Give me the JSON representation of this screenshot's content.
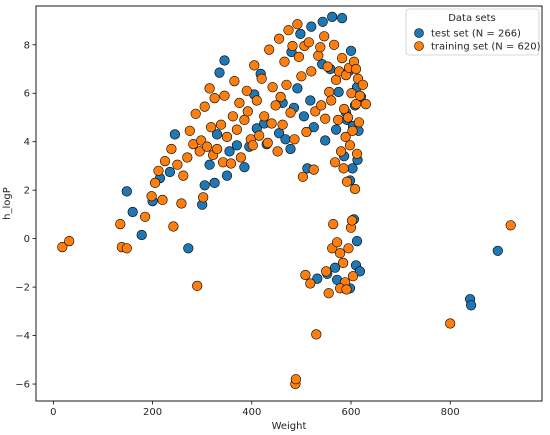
{
  "chart_data": {
    "type": "scatter",
    "title": "",
    "xlabel": "Weight",
    "ylabel": "h_logP",
    "xlim": [
      -35,
      985
    ],
    "ylim": [
      -6.7,
      9.6
    ],
    "x_ticks": [
      0,
      200,
      400,
      600,
      800
    ],
    "y_ticks": [
      -6,
      -4,
      -2,
      0,
      2,
      4,
      6,
      8
    ],
    "grid": false,
    "legend": {
      "title": "Data sets",
      "location": "upper right"
    },
    "series": [
      {
        "name": "test set (N = 266)",
        "color": "#1f77b4",
        "points": [
          [
            148,
            1.95
          ],
          [
            160,
            1.1
          ],
          [
            178,
            0.15
          ],
          [
            200,
            1.55
          ],
          [
            215,
            2.5
          ],
          [
            235,
            2.75
          ],
          [
            245,
            4.3
          ],
          [
            272,
            -0.4
          ],
          [
            300,
            1.4
          ],
          [
            305,
            2.2
          ],
          [
            315,
            3.05
          ],
          [
            325,
            2.3
          ],
          [
            330,
            4.3
          ],
          [
            335,
            6.85
          ],
          [
            345,
            7.35
          ],
          [
            350,
            2.6
          ],
          [
            355,
            3.6
          ],
          [
            370,
            3.85
          ],
          [
            385,
            2.95
          ],
          [
            395,
            3.8
          ],
          [
            405,
            5.95
          ],
          [
            410,
            4.55
          ],
          [
            418,
            6.8
          ],
          [
            425,
            4.75
          ],
          [
            430,
            3.9
          ],
          [
            455,
            4.35
          ],
          [
            462,
            5.6
          ],
          [
            468,
            4.1
          ],
          [
            478,
            3.7
          ],
          [
            480,
            7.7
          ],
          [
            485,
            5.4
          ],
          [
            492,
            6.2
          ],
          [
            498,
            8.45
          ],
          [
            505,
            5.05
          ],
          [
            512,
            2.9
          ],
          [
            518,
            5.7
          ],
          [
            520,
            8.75
          ],
          [
            525,
            4.6
          ],
          [
            532,
            -1.65
          ],
          [
            542,
            7.2
          ],
          [
            543,
            8.95
          ],
          [
            548,
            4.05
          ],
          [
            552,
            -1.45
          ],
          [
            558,
            7.0
          ],
          [
            562,
            9.15
          ],
          [
            568,
            -1.2
          ],
          [
            570,
            4.5
          ],
          [
            575,
            6.05
          ],
          [
            582,
            9.1
          ],
          [
            586,
            3.4
          ],
          [
            590,
            5.2
          ],
          [
            592,
            4.9
          ],
          [
            595,
            6.9
          ],
          [
            598,
            2.4
          ],
          [
            600,
            7.75
          ],
          [
            603,
            2.9
          ],
          [
            604,
            4.65
          ],
          [
            606,
            0.8
          ],
          [
            608,
            5.5
          ],
          [
            610,
            -1.1
          ],
          [
            612,
            6.25
          ],
          [
            613,
            3.25
          ],
          [
            615,
            4.45
          ],
          [
            618,
            -1.35
          ],
          [
            620,
            5.85
          ],
          [
            598,
            -2.05
          ],
          [
            572,
            -1.7
          ],
          [
            612,
            -0.1
          ],
          [
            896,
            -0.5
          ],
          [
            840,
            -2.5
          ],
          [
            842,
            -2.75
          ]
        ]
      },
      {
        "name": "training set (N = 620)",
        "color": "#ff7f0e",
        "points": [
          [
            18,
            -0.35
          ],
          [
            32,
            -0.1
          ],
          [
            135,
            0.6
          ],
          [
            138,
            -0.35
          ],
          [
            148,
            -0.4
          ],
          [
            185,
            0.9
          ],
          [
            198,
            1.75
          ],
          [
            205,
            2.3
          ],
          [
            212,
            2.8
          ],
          [
            220,
            1.6
          ],
          [
            225,
            3.2
          ],
          [
            238,
            3.7
          ],
          [
            242,
            0.5
          ],
          [
            250,
            3.05
          ],
          [
            258,
            1.45
          ],
          [
            262,
            2.6
          ],
          [
            270,
            3.35
          ],
          [
            275,
            4.45
          ],
          [
            282,
            3.9
          ],
          [
            287,
            5.15
          ],
          [
            290,
            -1.95
          ],
          [
            295,
            3.6
          ],
          [
            298,
            4.05
          ],
          [
            302,
            1.7
          ],
          [
            305,
            5.45
          ],
          [
            310,
            3.8
          ],
          [
            315,
            6.2
          ],
          [
            318,
            4.6
          ],
          [
            322,
            3.45
          ],
          [
            325,
            5.8
          ],
          [
            330,
            3.7
          ],
          [
            338,
            4.7
          ],
          [
            342,
            3.15
          ],
          [
            345,
            5.9
          ],
          [
            350,
            4.2
          ],
          [
            358,
            3.1
          ],
          [
            362,
            5.05
          ],
          [
            365,
            6.5
          ],
          [
            370,
            4.5
          ],
          [
            375,
            5.6
          ],
          [
            378,
            3.35
          ],
          [
            385,
            4.9
          ],
          [
            390,
            6.1
          ],
          [
            392,
            5.25
          ],
          [
            398,
            4.1
          ],
          [
            402,
            3.85
          ],
          [
            405,
            7.15
          ],
          [
            410,
            5.7
          ],
          [
            415,
            4.25
          ],
          [
            420,
            6.6
          ],
          [
            425,
            5.05
          ],
          [
            432,
            3.95
          ],
          [
            435,
            7.8
          ],
          [
            440,
            4.75
          ],
          [
            442,
            6.25
          ],
          [
            448,
            5.5
          ],
          [
            452,
            3.6
          ],
          [
            455,
            8.25
          ],
          [
            458,
            5.85
          ],
          [
            462,
            4.7
          ],
          [
            466,
            7.3
          ],
          [
            470,
            6.35
          ],
          [
            474,
            8.6
          ],
          [
            478,
            5.2
          ],
          [
            482,
            7.95
          ],
          [
            486,
            4.1
          ],
          [
            488,
            -6.0
          ],
          [
            489,
            -5.8
          ],
          [
            492,
            8.85
          ],
          [
            495,
            7.5
          ],
          [
            500,
            6.7
          ],
          [
            503,
            2.55
          ],
          [
            506,
            7.95
          ],
          [
            508,
            -1.5
          ],
          [
            510,
            4.4
          ],
          [
            515,
            8.1
          ],
          [
            518,
            -1.85
          ],
          [
            520,
            6.9
          ],
          [
            525,
            2.85
          ],
          [
            528,
            5.25
          ],
          [
            530,
            -3.95
          ],
          [
            534,
            7.55
          ],
          [
            538,
            7.9
          ],
          [
            540,
            5.5
          ],
          [
            546,
            8.35
          ],
          [
            548,
            4.95
          ],
          [
            550,
            -1.35
          ],
          [
            553,
            7.1
          ],
          [
            555,
            -2.25
          ],
          [
            556,
            6.05
          ],
          [
            560,
            5.7
          ],
          [
            562,
            -0.4
          ],
          [
            564,
            0.6
          ],
          [
            566,
            8.0
          ],
          [
            568,
            3.15
          ],
          [
            570,
            6.55
          ],
          [
            572,
            -0.15
          ],
          [
            574,
            4.9
          ],
          [
            576,
            6.9
          ],
          [
            578,
            -0.6
          ],
          [
            580,
            3.6
          ],
          [
            582,
            7.45
          ],
          [
            584,
            -1.0
          ],
          [
            585,
            2.9
          ],
          [
            586,
            5.35
          ],
          [
            588,
            -1.8
          ],
          [
            589,
            4.2
          ],
          [
            590,
            6.75
          ],
          [
            592,
            2.35
          ],
          [
            594,
            5.0
          ],
          [
            595,
            -0.4
          ],
          [
            596,
            7.05
          ],
          [
            598,
            3.85
          ],
          [
            600,
            0.45
          ],
          [
            601,
            6.0
          ],
          [
            603,
            4.45
          ],
          [
            604,
            -1.55
          ],
          [
            606,
            7.3
          ],
          [
            608,
            2.05
          ],
          [
            610,
            5.55
          ],
          [
            612,
            3.5
          ],
          [
            614,
            6.6
          ],
          [
            616,
            4.8
          ],
          [
            618,
            5.9
          ],
          [
            624,
            6.35
          ],
          [
            630,
            5.55
          ],
          [
            578,
            -2.05
          ],
          [
            591,
            -2.1
          ],
          [
            602,
            0.75
          ],
          [
            610,
            7.0
          ],
          [
            800,
            -3.5
          ],
          [
            922,
            0.55
          ]
        ]
      }
    ]
  }
}
